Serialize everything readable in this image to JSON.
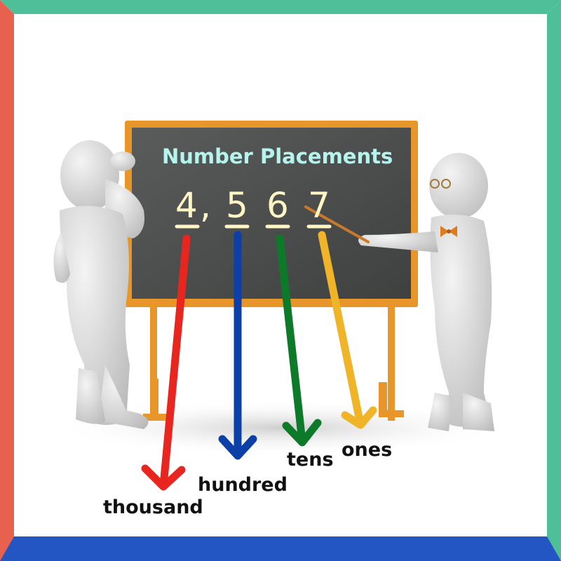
{
  "board": {
    "title": "Number Placements",
    "digits": [
      "4",
      "5",
      "6",
      "7"
    ],
    "separator": ","
  },
  "places": [
    {
      "label": "thousand",
      "digit": "4",
      "color": "#e8261f"
    },
    {
      "label": "hundred",
      "digit": "5",
      "color": "#0c3fa8"
    },
    {
      "label": "tens",
      "digit": "6",
      "color": "#0d7a2a"
    },
    {
      "label": "ones",
      "digit": "7",
      "color": "#f0b429"
    }
  ],
  "colors": {
    "frame_top": "#4fbf9a",
    "frame_left": "#e8614f",
    "frame_right": "#4fbf9a",
    "frame_bottom": "#2356c2",
    "board": "#4d4f4f",
    "board_frame": "#e8952a",
    "chalk_title": "#b6f4ee",
    "chalk_digits": "#fff6c4"
  },
  "figures": [
    {
      "name": "confused-student-figure"
    },
    {
      "name": "teacher-figure"
    }
  ]
}
